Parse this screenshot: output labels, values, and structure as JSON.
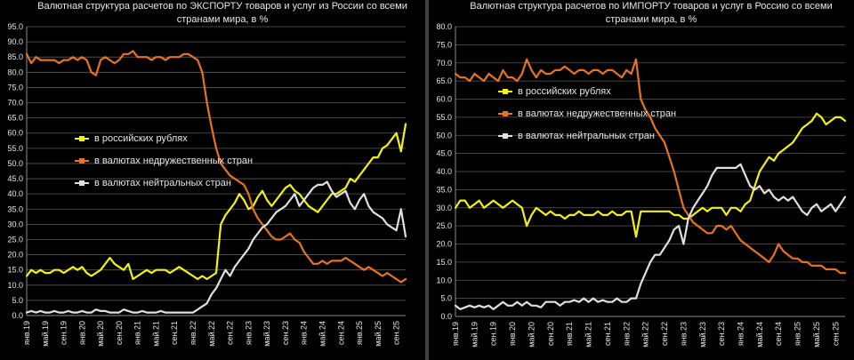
{
  "chart_data": [
    {
      "type": "line",
      "title": "Валютная структура расчетов по ЭКСПОРТУ товаров и услуг из России со всеми странами мира, в %",
      "ylim": [
        0,
        95
      ],
      "yticks": [
        "0.0",
        "5.0",
        "10.0",
        "15.0",
        "20.0",
        "25.0",
        "30.0",
        "35.0",
        "40.0",
        "45.0",
        "50.0",
        "55.0",
        "60.0",
        "65.0",
        "70.0",
        "75.0",
        "80.0",
        "85.0",
        "90.0",
        "95.0"
      ],
      "x_labels": [
        "янв.19",
        "май.19",
        "сен.19",
        "янв.20",
        "май.20",
        "сен.20",
        "янв.21",
        "май.21",
        "сен.21",
        "янв.22",
        "май.22",
        "сен.22",
        "янв.23",
        "май.23",
        "сен.23",
        "янв.24",
        "май.24",
        "сен.24",
        "янв.25",
        "май.25",
        "сен.25"
      ],
      "months": 83,
      "grid": true,
      "legend_position": "center-left",
      "series": [
        {
          "name": "в российских рублях",
          "color": "#f2f20e",
          "values": [
            13,
            15,
            14,
            15,
            14,
            14,
            15,
            15,
            14,
            15,
            16,
            15,
            16,
            14,
            13,
            14,
            15,
            17,
            19,
            17,
            16,
            15,
            17,
            12,
            13,
            14,
            15,
            14,
            15,
            15,
            15,
            14,
            15,
            16,
            15,
            14,
            13,
            12,
            13,
            12,
            13,
            14,
            30,
            33,
            35,
            37,
            40,
            38,
            35,
            36,
            39,
            41,
            38,
            36,
            38,
            40,
            42,
            43,
            41,
            40,
            38,
            36,
            35,
            34,
            36,
            38,
            40,
            40,
            41,
            42,
            45,
            44,
            46,
            48,
            50,
            52,
            52,
            55,
            56,
            58,
            60,
            54,
            63
          ]
        },
        {
          "name": "в валютах недружественных стран",
          "color": "#e8731c",
          "values": [
            86,
            83,
            85,
            84,
            84,
            84,
            84,
            83,
            84,
            84,
            85,
            84,
            85,
            84,
            80,
            79,
            84,
            85,
            84,
            83,
            84,
            86,
            86,
            87,
            85,
            85,
            85,
            84,
            85,
            85,
            84,
            85,
            85,
            85,
            86,
            86,
            85,
            84,
            80,
            70,
            62,
            55,
            50,
            48,
            46,
            45,
            44,
            43,
            40,
            35,
            32,
            30,
            28,
            26,
            25,
            25,
            26,
            27,
            25,
            24,
            21,
            19,
            17,
            17,
            18,
            17,
            18,
            18,
            18,
            19,
            18,
            17,
            16,
            15,
            16,
            15,
            14,
            13,
            14,
            13,
            12,
            11,
            12
          ]
        },
        {
          "name": "в валютах нейтральных стран",
          "color": "#e0e0e0",
          "values": [
            1,
            1.5,
            1,
            1.5,
            1,
            1,
            1.5,
            1,
            1,
            1.5,
            1,
            1,
            1.5,
            1,
            1,
            2,
            1.5,
            1.5,
            1,
            1,
            1,
            2,
            1.5,
            1,
            1,
            1.5,
            1,
            1,
            1,
            1.5,
            1,
            1,
            1,
            1,
            1,
            1,
            1,
            2,
            3,
            4,
            7,
            9,
            12,
            15,
            13,
            16,
            18,
            20,
            22,
            25,
            27,
            29,
            30,
            32,
            34,
            35,
            36,
            38,
            40,
            36,
            38,
            40,
            42,
            43,
            43,
            44,
            41,
            39,
            40,
            41,
            37,
            35,
            38,
            40,
            36,
            34,
            33,
            32,
            30,
            29,
            28,
            35,
            26
          ]
        }
      ]
    },
    {
      "type": "line",
      "title": "Валютная структура расчетов по ИМПОРТУ товаров и услуг в Россию со всеми странами мира, в %",
      "ylim": [
        0,
        80
      ],
      "yticks": [
        "0.0",
        "5.0",
        "10.0",
        "15.0",
        "20.0",
        "25.0",
        "30.0",
        "35.0",
        "40.0",
        "45.0",
        "50.0",
        "55.0",
        "60.0",
        "65.0",
        "70.0",
        "75.0",
        "80.0"
      ],
      "x_labels": [
        "янв.19",
        "май.19",
        "сен.19",
        "янв.20",
        "май.20",
        "сен.20",
        "янв.21",
        "май.21",
        "сен.21",
        "янв.22",
        "май.22",
        "сен.22",
        "янв.23",
        "май.23",
        "сен.23",
        "янв.24",
        "май.24",
        "сен.24",
        "янв.25",
        "май.25",
        "сен.25"
      ],
      "months": 83,
      "grid": true,
      "legend_position": "top-left",
      "series": [
        {
          "name": "в российских рублях",
          "color": "#f2f20e",
          "values": [
            30,
            32,
            32,
            30,
            31,
            32,
            30,
            31,
            32,
            31,
            30,
            31,
            32,
            31,
            30,
            25,
            28,
            30,
            29,
            28,
            29,
            28,
            28,
            27,
            28,
            28,
            29,
            28,
            28,
            28,
            29,
            28,
            28,
            29,
            28,
            28,
            29,
            29,
            22,
            29,
            29,
            29,
            29,
            29,
            29,
            29,
            28,
            28,
            27,
            27,
            28,
            29,
            30,
            29,
            30,
            30,
            30,
            28,
            30,
            30,
            29,
            31,
            32,
            36,
            40,
            42,
            44,
            43,
            45,
            46,
            47,
            48,
            50,
            52,
            53,
            54,
            56,
            55,
            53,
            54,
            55,
            55,
            54
          ]
        },
        {
          "name": "в валютах недружественных стран",
          "color": "#e8731c",
          "values": [
            67,
            66,
            66,
            65,
            67,
            66,
            65,
            67,
            66,
            65,
            68,
            66,
            66,
            65,
            67,
            71,
            68,
            66,
            68,
            67,
            67,
            68,
            68,
            69,
            68,
            67,
            68,
            68,
            67,
            68,
            68,
            67,
            68,
            68,
            67,
            66,
            68,
            67,
            71,
            60,
            57,
            55,
            52,
            50,
            48,
            44,
            40,
            35,
            30,
            28,
            26,
            25,
            24,
            23,
            23,
            25,
            25,
            24,
            25,
            23,
            21,
            20,
            19,
            18,
            17,
            16,
            15,
            17,
            20,
            18,
            17,
            16,
            16,
            15,
            15,
            14,
            14,
            14,
            13,
            13,
            13,
            12,
            12
          ]
        },
        {
          "name": "в валютах нейтральных стран",
          "color": "#e0e0e0",
          "values": [
            3,
            2,
            2.5,
            3,
            2.5,
            3,
            2.5,
            3,
            2,
            3,
            4,
            3,
            3,
            4,
            3,
            4,
            3,
            3,
            2.5,
            4,
            4,
            4,
            3,
            4,
            4,
            4.5,
            4,
            5,
            4,
            5,
            4,
            4.5,
            4,
            4,
            5,
            4,
            4,
            5,
            5,
            9,
            12,
            15,
            17,
            17,
            19,
            21,
            24,
            25,
            20,
            27,
            30,
            32,
            34,
            36,
            39,
            41,
            41,
            41,
            41,
            41,
            42,
            39,
            36,
            35,
            36,
            34,
            35,
            33,
            32,
            33,
            32,
            33,
            31,
            29,
            28,
            30,
            31,
            29,
            30,
            31,
            29,
            31,
            33
          ]
        }
      ]
    }
  ]
}
